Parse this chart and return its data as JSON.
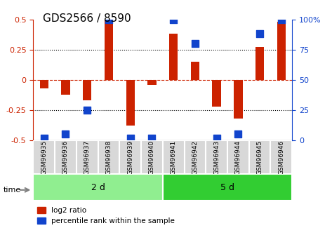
{
  "title": "GDS2566 / 8590",
  "samples": [
    "GSM96935",
    "GSM96936",
    "GSM96937",
    "GSM96938",
    "GSM96939",
    "GSM96940",
    "GSM96941",
    "GSM96942",
    "GSM96943",
    "GSM96944",
    "GSM96945",
    "GSM96946"
  ],
  "log2_ratio": [
    -0.07,
    -0.12,
    -0.17,
    0.5,
    -0.38,
    -0.04,
    0.38,
    0.15,
    -0.22,
    -0.32,
    0.27,
    0.48
  ],
  "percentile_rank": [
    2,
    5,
    25,
    100,
    2,
    2,
    100,
    80,
    2,
    5,
    88,
    100
  ],
  "groups": [
    {
      "label": "2 d",
      "start": 0,
      "end": 6,
      "color": "#90EE90"
    },
    {
      "label": "5 d",
      "start": 6,
      "end": 12,
      "color": "#32CD32"
    }
  ],
  "ylim": [
    -0.5,
    0.5
  ],
  "yticks": [
    -0.5,
    -0.25,
    0,
    0.25,
    0.5
  ],
  "ytick_labels_left": [
    "-0.5",
    "-0.25",
    "0",
    "0.25",
    "0.5"
  ],
  "ytick_labels_right": [
    "0",
    "25",
    "50",
    "75",
    "100%"
  ],
  "bar_color": "#CC2200",
  "dot_color": "#1144CC",
  "bar_width": 0.4,
  "dot_size": 60,
  "hline_color": "#CC2200",
  "dotted_color": "black",
  "bg_color": "white",
  "time_label": "time",
  "legend_log2": "log2 ratio",
  "legend_pct": "percentile rank within the sample"
}
